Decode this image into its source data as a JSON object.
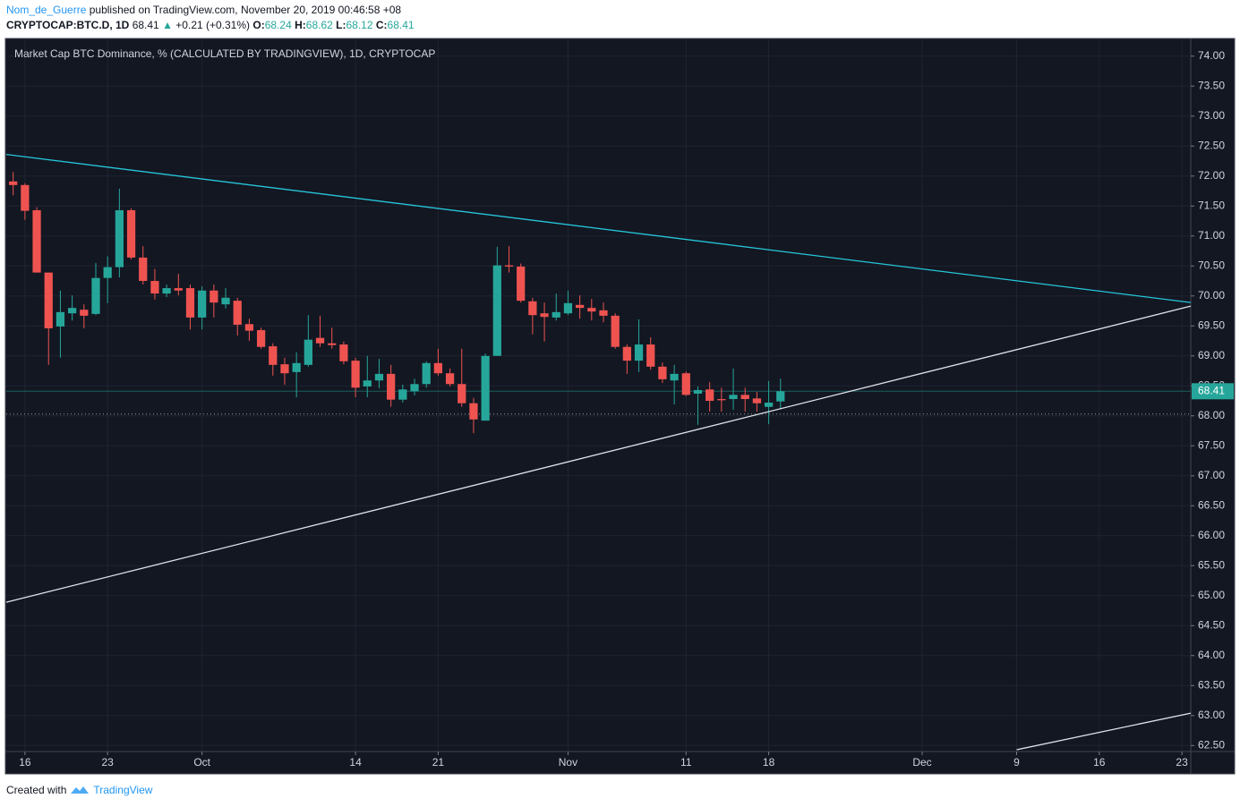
{
  "header": {
    "author": "Nom_de_Guerre",
    "published": "published on TradingView.com, November 20, 2019 00:46:58 +08",
    "symbol": "CRYPTOCAP:BTC.D, 1D",
    "last": "68.41",
    "change": "+0.21 (+0.31%)",
    "o_label": "O:",
    "o": "68.24",
    "h_label": "H:",
    "h": "68.62",
    "l_label": "L:",
    "l": "68.12",
    "c_label": "C:",
    "c": "68.41"
  },
  "chart_data": {
    "type": "candlestick",
    "title": "Market Cap BTC Dominance, % (CALCULATED BY TRADINGVIEW), 1D, CRYPTOCAP",
    "x": [
      "2019-09-15",
      "2019-09-16",
      "2019-09-17",
      "2019-09-18",
      "2019-09-19",
      "2019-09-20",
      "2019-09-21",
      "2019-09-22",
      "2019-09-23",
      "2019-09-24",
      "2019-09-25",
      "2019-09-26",
      "2019-09-27",
      "2019-09-28",
      "2019-09-29",
      "2019-09-30",
      "2019-10-01",
      "2019-10-02",
      "2019-10-03",
      "2019-10-04",
      "2019-10-05",
      "2019-10-06",
      "2019-10-07",
      "2019-10-08",
      "2019-10-09",
      "2019-10-10",
      "2019-10-11",
      "2019-10-12",
      "2019-10-13",
      "2019-10-14",
      "2019-10-15",
      "2019-10-16",
      "2019-10-17",
      "2019-10-18",
      "2019-10-19",
      "2019-10-20",
      "2019-10-21",
      "2019-10-22",
      "2019-10-23",
      "2019-10-24",
      "2019-10-25",
      "2019-10-26",
      "2019-10-27",
      "2019-10-28",
      "2019-10-29",
      "2019-10-30",
      "2019-10-31",
      "2019-11-01",
      "2019-11-02",
      "2019-11-03",
      "2019-11-04",
      "2019-11-05",
      "2019-11-06",
      "2019-11-07",
      "2019-11-08",
      "2019-11-09",
      "2019-11-10",
      "2019-11-11",
      "2019-11-12",
      "2019-11-13",
      "2019-11-14",
      "2019-11-15",
      "2019-11-16",
      "2019-11-17",
      "2019-11-18",
      "2019-11-19"
    ],
    "open": [
      71.91,
      71.85,
      71.43,
      70.39,
      69.49,
      69.71,
      69.77,
      69.7,
      70.3,
      70.48,
      71.43,
      70.64,
      70.25,
      70.04,
      70.13,
      70.13,
      69.64,
      70.09,
      69.86,
      69.92,
      69.53,
      69.43,
      69.16,
      68.86,
      68.73,
      68.85,
      69.3,
      69.21,
      69.19,
      68.92,
      68.49,
      68.59,
      68.7,
      68.27,
      68.41,
      68.53,
      68.88,
      68.71,
      68.53,
      68.21,
      67.92,
      69.0,
      70.51,
      70.49,
      69.91,
      69.71,
      69.64,
      69.71,
      69.85,
      69.8,
      69.76,
      69.67,
      69.15,
      68.92,
      69.19,
      68.82,
      68.59,
      68.71,
      68.37,
      68.44,
      68.28,
      68.28,
      68.35,
      68.29,
      68.15,
      68.24
    ],
    "high": [
      72.07,
      71.88,
      71.48,
      70.39,
      70.09,
      70.01,
      69.86,
      70.55,
      70.66,
      71.79,
      71.46,
      70.83,
      70.45,
      70.19,
      70.37,
      70.19,
      70.16,
      70.19,
      70.13,
      69.97,
      69.62,
      69.47,
      69.21,
      68.97,
      69.06,
      69.68,
      69.67,
      69.47,
      69.24,
      68.97,
      69.0,
      68.95,
      68.85,
      68.52,
      68.62,
      68.91,
      69.12,
      68.79,
      69.12,
      68.3,
      69.04,
      70.82,
      70.83,
      70.54,
      69.97,
      69.89,
      70.04,
      70.09,
      70.01,
      69.95,
      69.89,
      69.71,
      69.19,
      69.61,
      69.31,
      68.89,
      68.85,
      68.74,
      68.49,
      68.56,
      68.47,
      68.79,
      68.47,
      68.4,
      68.58,
      68.62
    ],
    "low": [
      71.68,
      71.27,
      70.39,
      68.85,
      68.97,
      69.59,
      69.46,
      69.68,
      69.88,
      70.31,
      70.61,
      70.19,
      69.94,
      69.98,
      70.01,
      69.44,
      69.44,
      69.64,
      69.79,
      69.34,
      69.25,
      69.12,
      68.67,
      68.52,
      68.31,
      68.82,
      69.15,
      69.12,
      68.86,
      68.31,
      68.31,
      68.46,
      68.15,
      68.22,
      68.34,
      68.47,
      68.67,
      68.49,
      68.15,
      67.71,
      67.92,
      69.0,
      70.39,
      69.89,
      69.36,
      69.24,
      69.59,
      69.68,
      69.62,
      69.59,
      69.56,
      69.12,
      68.7,
      68.73,
      68.77,
      68.55,
      68.19,
      68.33,
      67.85,
      68.07,
      68.07,
      68.1,
      68.07,
      68.07,
      67.86,
      68.12
    ],
    "close": [
      71.85,
      71.42,
      70.39,
      69.46,
      69.73,
      69.8,
      69.67,
      70.3,
      70.48,
      71.43,
      70.64,
      70.25,
      70.04,
      70.13,
      70.09,
      69.64,
      70.09,
      69.89,
      69.97,
      69.52,
      69.42,
      69.15,
      68.85,
      68.71,
      68.88,
      69.27,
      69.21,
      69.18,
      68.91,
      68.47,
      68.59,
      68.7,
      68.27,
      68.44,
      68.53,
      68.88,
      68.71,
      68.53,
      68.21,
      67.94,
      69.0,
      70.51,
      70.49,
      69.92,
      69.68,
      69.65,
      69.73,
      69.88,
      69.8,
      69.74,
      69.67,
      69.15,
      68.92,
      69.19,
      68.82,
      68.61,
      68.7,
      68.35,
      68.43,
      68.25,
      68.26,
      68.35,
      68.28,
      68.21,
      68.22,
      68.41
    ],
    "up_color": "#26a69a",
    "down_color": "#ef5350",
    "xlim": [
      "2019-09-14T10:00",
      "2019-12-23T18:00"
    ],
    "ylim": [
      62.4,
      74.28
    ],
    "xticks": [
      {
        "value": "2019-09-16",
        "label": "16"
      },
      {
        "value": "2019-09-23",
        "label": "23"
      },
      {
        "value": "2019-10-01",
        "label": "Oct"
      },
      {
        "value": "2019-10-14",
        "label": "14"
      },
      {
        "value": "2019-10-21",
        "label": "21"
      },
      {
        "value": "2019-11-01",
        "label": "Nov"
      },
      {
        "value": "2019-11-11",
        "label": "11"
      },
      {
        "value": "2019-11-18",
        "label": "18"
      },
      {
        "value": "2019-12-01",
        "label": "Dec"
      },
      {
        "value": "2019-12-09",
        "label": "9"
      },
      {
        "value": "2019-12-16",
        "label": "16"
      },
      {
        "value": "2019-12-23",
        "label": "23"
      }
    ],
    "yticks": [
      {
        "value": 62.5,
        "label": "62.50"
      },
      {
        "value": 63,
        "label": "63.00"
      },
      {
        "value": 63.5,
        "label": "63.50"
      },
      {
        "value": 64,
        "label": "64.00"
      },
      {
        "value": 64.5,
        "label": "64.50"
      },
      {
        "value": 65,
        "label": "65.00"
      },
      {
        "value": 65.5,
        "label": "65.50"
      },
      {
        "value": 66,
        "label": "66.00"
      },
      {
        "value": 66.5,
        "label": "66.50"
      },
      {
        "value": 67,
        "label": "67.00"
      },
      {
        "value": 67.5,
        "label": "67.50"
      },
      {
        "value": 68,
        "label": "68.00"
      },
      {
        "value": 68.5,
        "label": "68.50"
      },
      {
        "value": 69,
        "label": "69.00"
      },
      {
        "value": 69.5,
        "label": "69.50"
      },
      {
        "value": 70,
        "label": "70.00"
      },
      {
        "value": 70.5,
        "label": "70.50"
      },
      {
        "value": 71,
        "label": "71.00"
      },
      {
        "value": 71.5,
        "label": "71.50"
      },
      {
        "value": 72,
        "label": "72.00"
      },
      {
        "value": 72.5,
        "label": "72.50"
      },
      {
        "value": 73,
        "label": "73.00"
      },
      {
        "value": 73.5,
        "label": "73.50"
      },
      {
        "value": 74,
        "label": "74.00"
      }
    ],
    "grid": true,
    "last_price": 68.41,
    "dotted_level": 68.03,
    "trendlines": [
      {
        "color": "#26c6da",
        "x": [
          "2019-09-14T10:00",
          "2019-12-23T18:00"
        ],
        "y": [
          72.36,
          69.89
        ]
      },
      {
        "color": "#e0e3eb",
        "x": [
          "2019-09-14T10:00",
          "2019-12-23T18:00"
        ],
        "y": [
          64.89,
          69.83
        ]
      },
      {
        "color": "#e0e3eb",
        "x": [
          "2019-12-09",
          "2019-12-23T18:00"
        ],
        "y": [
          62.43,
          63.04
        ]
      }
    ]
  },
  "footer": {
    "text": "Created with",
    "brand": "TradingView"
  }
}
